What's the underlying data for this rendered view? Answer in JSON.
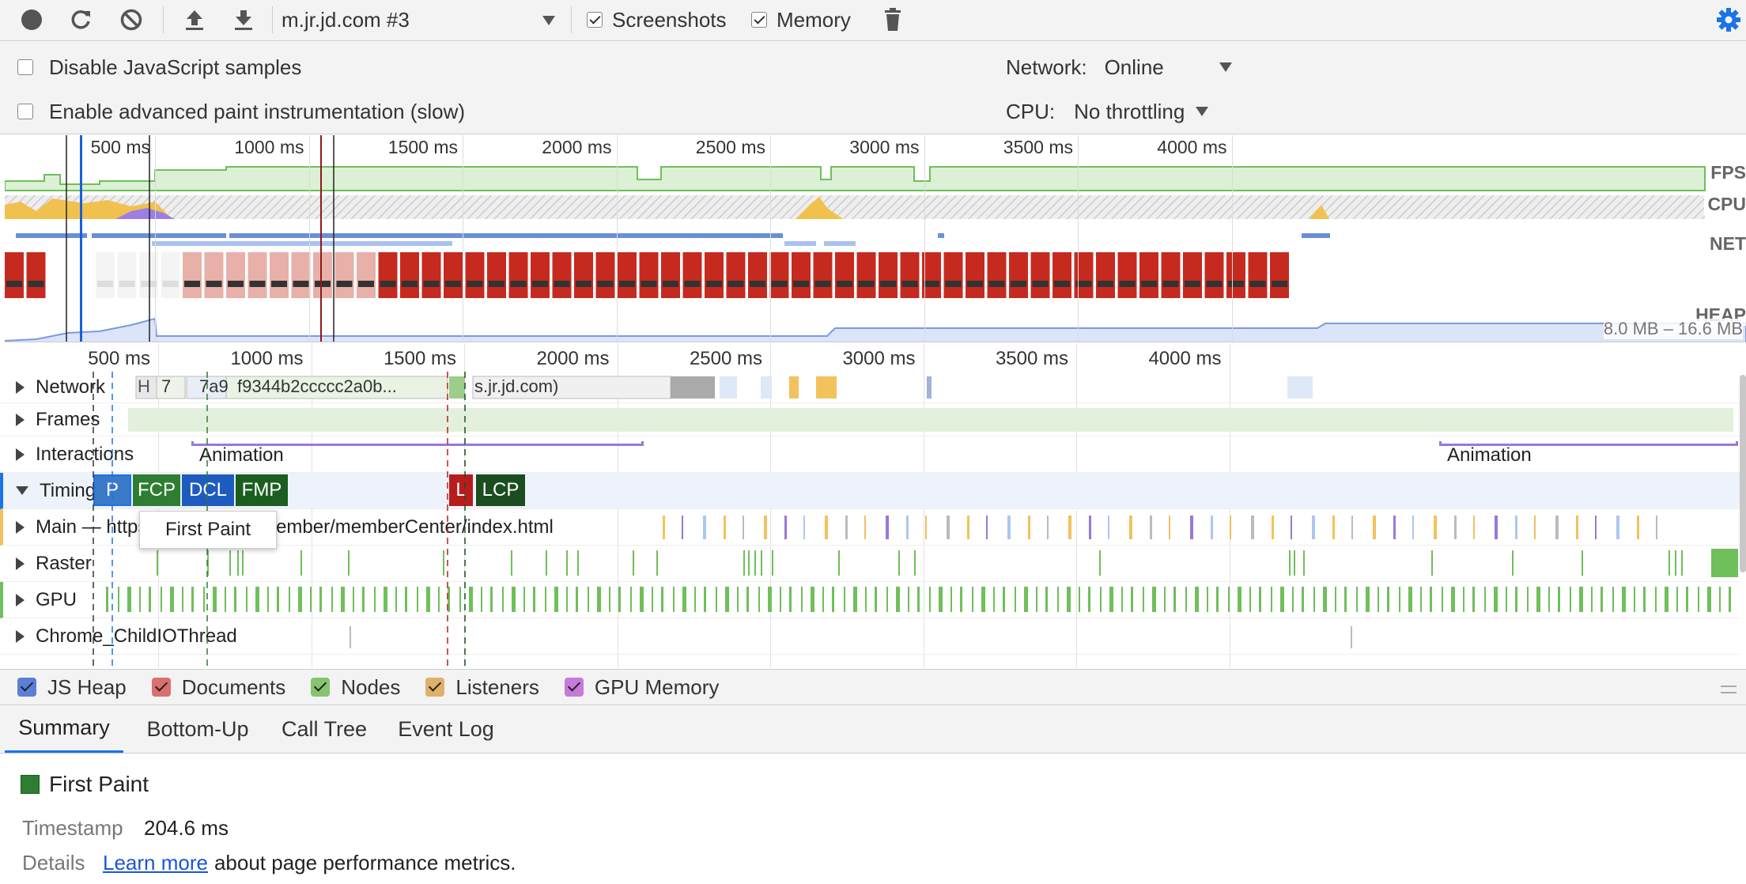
{
  "toolbar": {
    "target": "m.jr.jd.com #3",
    "screenshots_label": "Screenshots",
    "memory_label": "Memory"
  },
  "settings": {
    "disable_js_samples": "Disable JavaScript samples",
    "advanced_paint": "Enable advanced paint instrumentation (slow)",
    "network_label": "Network:",
    "network_value": "Online",
    "cpu_label": "CPU:",
    "cpu_value": "No throttling"
  },
  "overview": {
    "ticks": [
      "500 ms",
      "1000 ms",
      "1500 ms",
      "2000 ms",
      "2500 ms",
      "3000 ms",
      "3500 ms",
      "4000 ms"
    ],
    "lanes": {
      "fps": "FPS",
      "cpu": "CPU",
      "net": "NET",
      "heap": "HEAP"
    },
    "heap_range": "8.0 MB – 16.6 MB"
  },
  "flame": {
    "ticks": [
      "500 ms",
      "1000 ms",
      "1500 ms",
      "2000 ms",
      "2500 ms",
      "3000 ms",
      "3500 ms",
      "4000 ms"
    ],
    "tracks": {
      "network": "Network",
      "frames": "Frames",
      "interactions": "Interactions",
      "timings": "Timings",
      "main": "Main — https://m.jr.jd.com/member/memberCenter/index.html",
      "raster": "Raster",
      "gpu": "GPU",
      "chrome_io": "Chrome_ChildIOThread"
    },
    "network_items": [
      "H",
      "7",
      "7a9",
      "f9344b2ccccc2a0b...",
      "s.jr.jd.com)"
    ],
    "interaction_labels": [
      "Animation",
      "Animation"
    ],
    "timing_marks": [
      {
        "label": "P",
        "color": "#3a7ac8"
      },
      {
        "label": "FCP",
        "color": "#2e7d32"
      },
      {
        "label": "DCL",
        "color": "#1e5bbf"
      },
      {
        "label": "FMP",
        "color": "#1b5e20"
      },
      {
        "label": "L",
        "color": "#b71c1c"
      },
      {
        "label": "LCP",
        "color": "#1b4d20"
      }
    ],
    "tooltip": "First Paint"
  },
  "counters": [
    {
      "label": "JS Heap",
      "color": "#5b7ed6"
    },
    {
      "label": "Documents",
      "color": "#d9706e"
    },
    {
      "label": "Nodes",
      "color": "#86c46e"
    },
    {
      "label": "Listeners",
      "color": "#dfb06a"
    },
    {
      "label": "GPU Memory",
      "color": "#c77ad8"
    }
  ],
  "tabs": [
    "Summary",
    "Bottom-Up",
    "Call Tree",
    "Event Log"
  ],
  "details": {
    "title": "First Paint",
    "timestamp_label": "Timestamp",
    "timestamp_value": "204.6 ms",
    "details_label": "Details",
    "learn_more": "Learn more",
    "details_text": "about page performance metrics."
  }
}
